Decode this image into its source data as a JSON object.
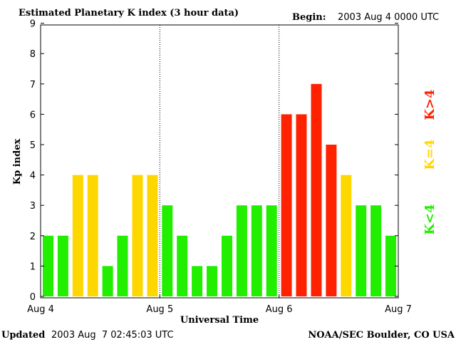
{
  "header": {
    "title": "Estimated Planetary K index (3 hour data)",
    "begin_label": "Begin:",
    "begin_value": "2003 Aug 4 0000 UTC"
  },
  "footer": {
    "updated_label": "Updated",
    "updated_value": "2003 Aug  7 02:45:03 UTC",
    "source": "NOAA/SEC Boulder, CO USA"
  },
  "legend": {
    "low": "K<4",
    "equal": "K=4",
    "high": "K>4"
  },
  "colors": {
    "low": "#22ee00",
    "equal": "#ffd700",
    "high": "#ff2200",
    "axis": "#000000",
    "background": "#ffffff"
  },
  "chart_data": {
    "type": "bar",
    "title": "Estimated Planetary K index (3 hour data)",
    "xlabel": "Universal Time",
    "ylabel": "Kp index",
    "ylim": [
      0,
      9
    ],
    "yticks": [
      "0",
      "1",
      "2",
      "3",
      "4",
      "5",
      "6",
      "7",
      "8",
      "9"
    ],
    "xticks": [
      "Aug 4",
      "Aug 5",
      "Aug 6",
      "Aug 7"
    ],
    "intervals_per_day": 8,
    "day_separators": "dotted lines at Aug 5 and Aug 6",
    "values": [
      2,
      2,
      4,
      4,
      1,
      2,
      4,
      4,
      3,
      2,
      1,
      1,
      2,
      3,
      3,
      3,
      6,
      6,
      7,
      5,
      4,
      3,
      3,
      2
    ],
    "color_rule": "green if K<4, yellow if K=4, red if K>4"
  }
}
